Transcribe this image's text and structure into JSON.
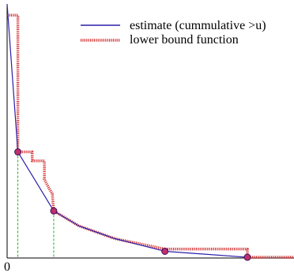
{
  "chart_data": {
    "type": "line",
    "title": "",
    "xlabel": "",
    "ylabel": "",
    "xlim": [
      0,
      40
    ],
    "ylim": [
      0,
      34
    ],
    "x_tick_labels": [
      {
        "x": 0,
        "label": "0"
      }
    ],
    "grid": false,
    "legend_position": "top-right",
    "series": [
      {
        "name": "estimate (cummulative >u)",
        "style": "solid",
        "color": "#2b1fa8",
        "points": [
          [
            0,
            34
          ],
          [
            1.5,
            14.2
          ],
          [
            6.5,
            6.3
          ],
          [
            10,
            4.3
          ],
          [
            15,
            2.6
          ],
          [
            22,
            0.9
          ],
          [
            33.5,
            0.1
          ]
        ]
      },
      {
        "name": "lower bound function",
        "style": "dotted-band",
        "color": "#d33030",
        "points": [
          [
            0,
            32.5
          ],
          [
            1.5,
            32.5
          ],
          [
            1.5,
            14.2
          ],
          [
            3.5,
            14.2
          ],
          [
            3.5,
            13.0
          ],
          [
            5.2,
            13.0
          ],
          [
            5.2,
            10.5
          ],
          [
            5.8,
            9.4
          ],
          [
            6.3,
            8.6
          ],
          [
            6.5,
            6.3
          ],
          [
            10,
            4.3
          ],
          [
            15,
            2.6
          ],
          [
            22,
            1.2
          ],
          [
            33.5,
            1.2
          ],
          [
            33.5,
            0.1
          ],
          [
            40,
            0.1
          ]
        ]
      }
    ],
    "markers": [
      {
        "x": 1.5,
        "y": 14.2
      },
      {
        "x": 6.5,
        "y": 6.3
      },
      {
        "x": 22,
        "y": 0.9
      },
      {
        "x": 33.5,
        "y": 0.1
      }
    ],
    "drop_lines_at": [
      1.5,
      6.5
    ],
    "drop_line_color": "#22aa22",
    "marker_fill": "#c0306a",
    "marker_stroke": "#3a1060"
  }
}
